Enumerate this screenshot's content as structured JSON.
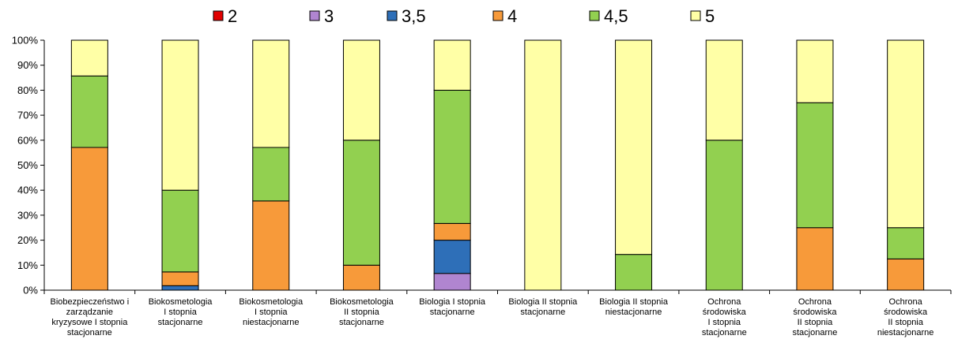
{
  "chart_data": {
    "type": "bar",
    "stacked": true,
    "percent": true,
    "title": "",
    "xlabel": "",
    "ylabel": "",
    "ylim": [
      0,
      100
    ],
    "yticks": [
      "0%",
      "10%",
      "20%",
      "30%",
      "40%",
      "50%",
      "60%",
      "70%",
      "80%",
      "90%",
      "100%"
    ],
    "grid": false,
    "legend_position": "top",
    "categories": [
      [
        "Biobezpieczeństwo i",
        "zarządzanie",
        "kryzysowe  I stopnia",
        "stacjonarne"
      ],
      [
        "Biokosmetologia",
        "I stopnia",
        "stacjonarne"
      ],
      [
        "Biokosmetologia",
        "I stopnia",
        "niestacjonarne"
      ],
      [
        "Biokosmetologia",
        "II stopnia",
        "stacjonarne"
      ],
      [
        "Biologia I stopnia",
        "stacjonarne"
      ],
      [
        "Biologia II stopnia",
        "stacjonarne"
      ],
      [
        "Biologia II stopnia",
        "niestacjonarne"
      ],
      [
        "Ochrona",
        "środowiska",
        "I stopnia",
        "stacjonarne"
      ],
      [
        "Ochrona",
        "środowiska",
        "II stopnia",
        "stacjonarne"
      ],
      [
        "Ochrona",
        "środowiska",
        "II stopnia",
        "niestacjonarne"
      ]
    ],
    "series": [
      {
        "name": "2",
        "color": "#e00000",
        "values": [
          0,
          0,
          0,
          0,
          0,
          0,
          0,
          0,
          0,
          0
        ]
      },
      {
        "name": "3",
        "color": "#b085d0",
        "values": [
          0,
          0,
          0,
          0,
          6.7,
          0,
          0,
          0,
          0,
          0
        ]
      },
      {
        "name": "3,5",
        "color": "#2e6fb8",
        "values": [
          0,
          1.8,
          0,
          0,
          13.3,
          0,
          0,
          0,
          0,
          0
        ]
      },
      {
        "name": "4",
        "color": "#f79a3a",
        "values": [
          57.1,
          5.5,
          35.7,
          10,
          6.7,
          0,
          0,
          0,
          25,
          12.5
        ]
      },
      {
        "name": "4,5",
        "color": "#92d050",
        "values": [
          28.6,
          32.7,
          21.4,
          50,
          53.3,
          0,
          14.3,
          60,
          50,
          12.5
        ]
      },
      {
        "name": "5",
        "color": "#ffffa6",
        "values": [
          14.3,
          60,
          42.9,
          40,
          20,
          100,
          85.7,
          40,
          25,
          75
        ]
      }
    ]
  }
}
